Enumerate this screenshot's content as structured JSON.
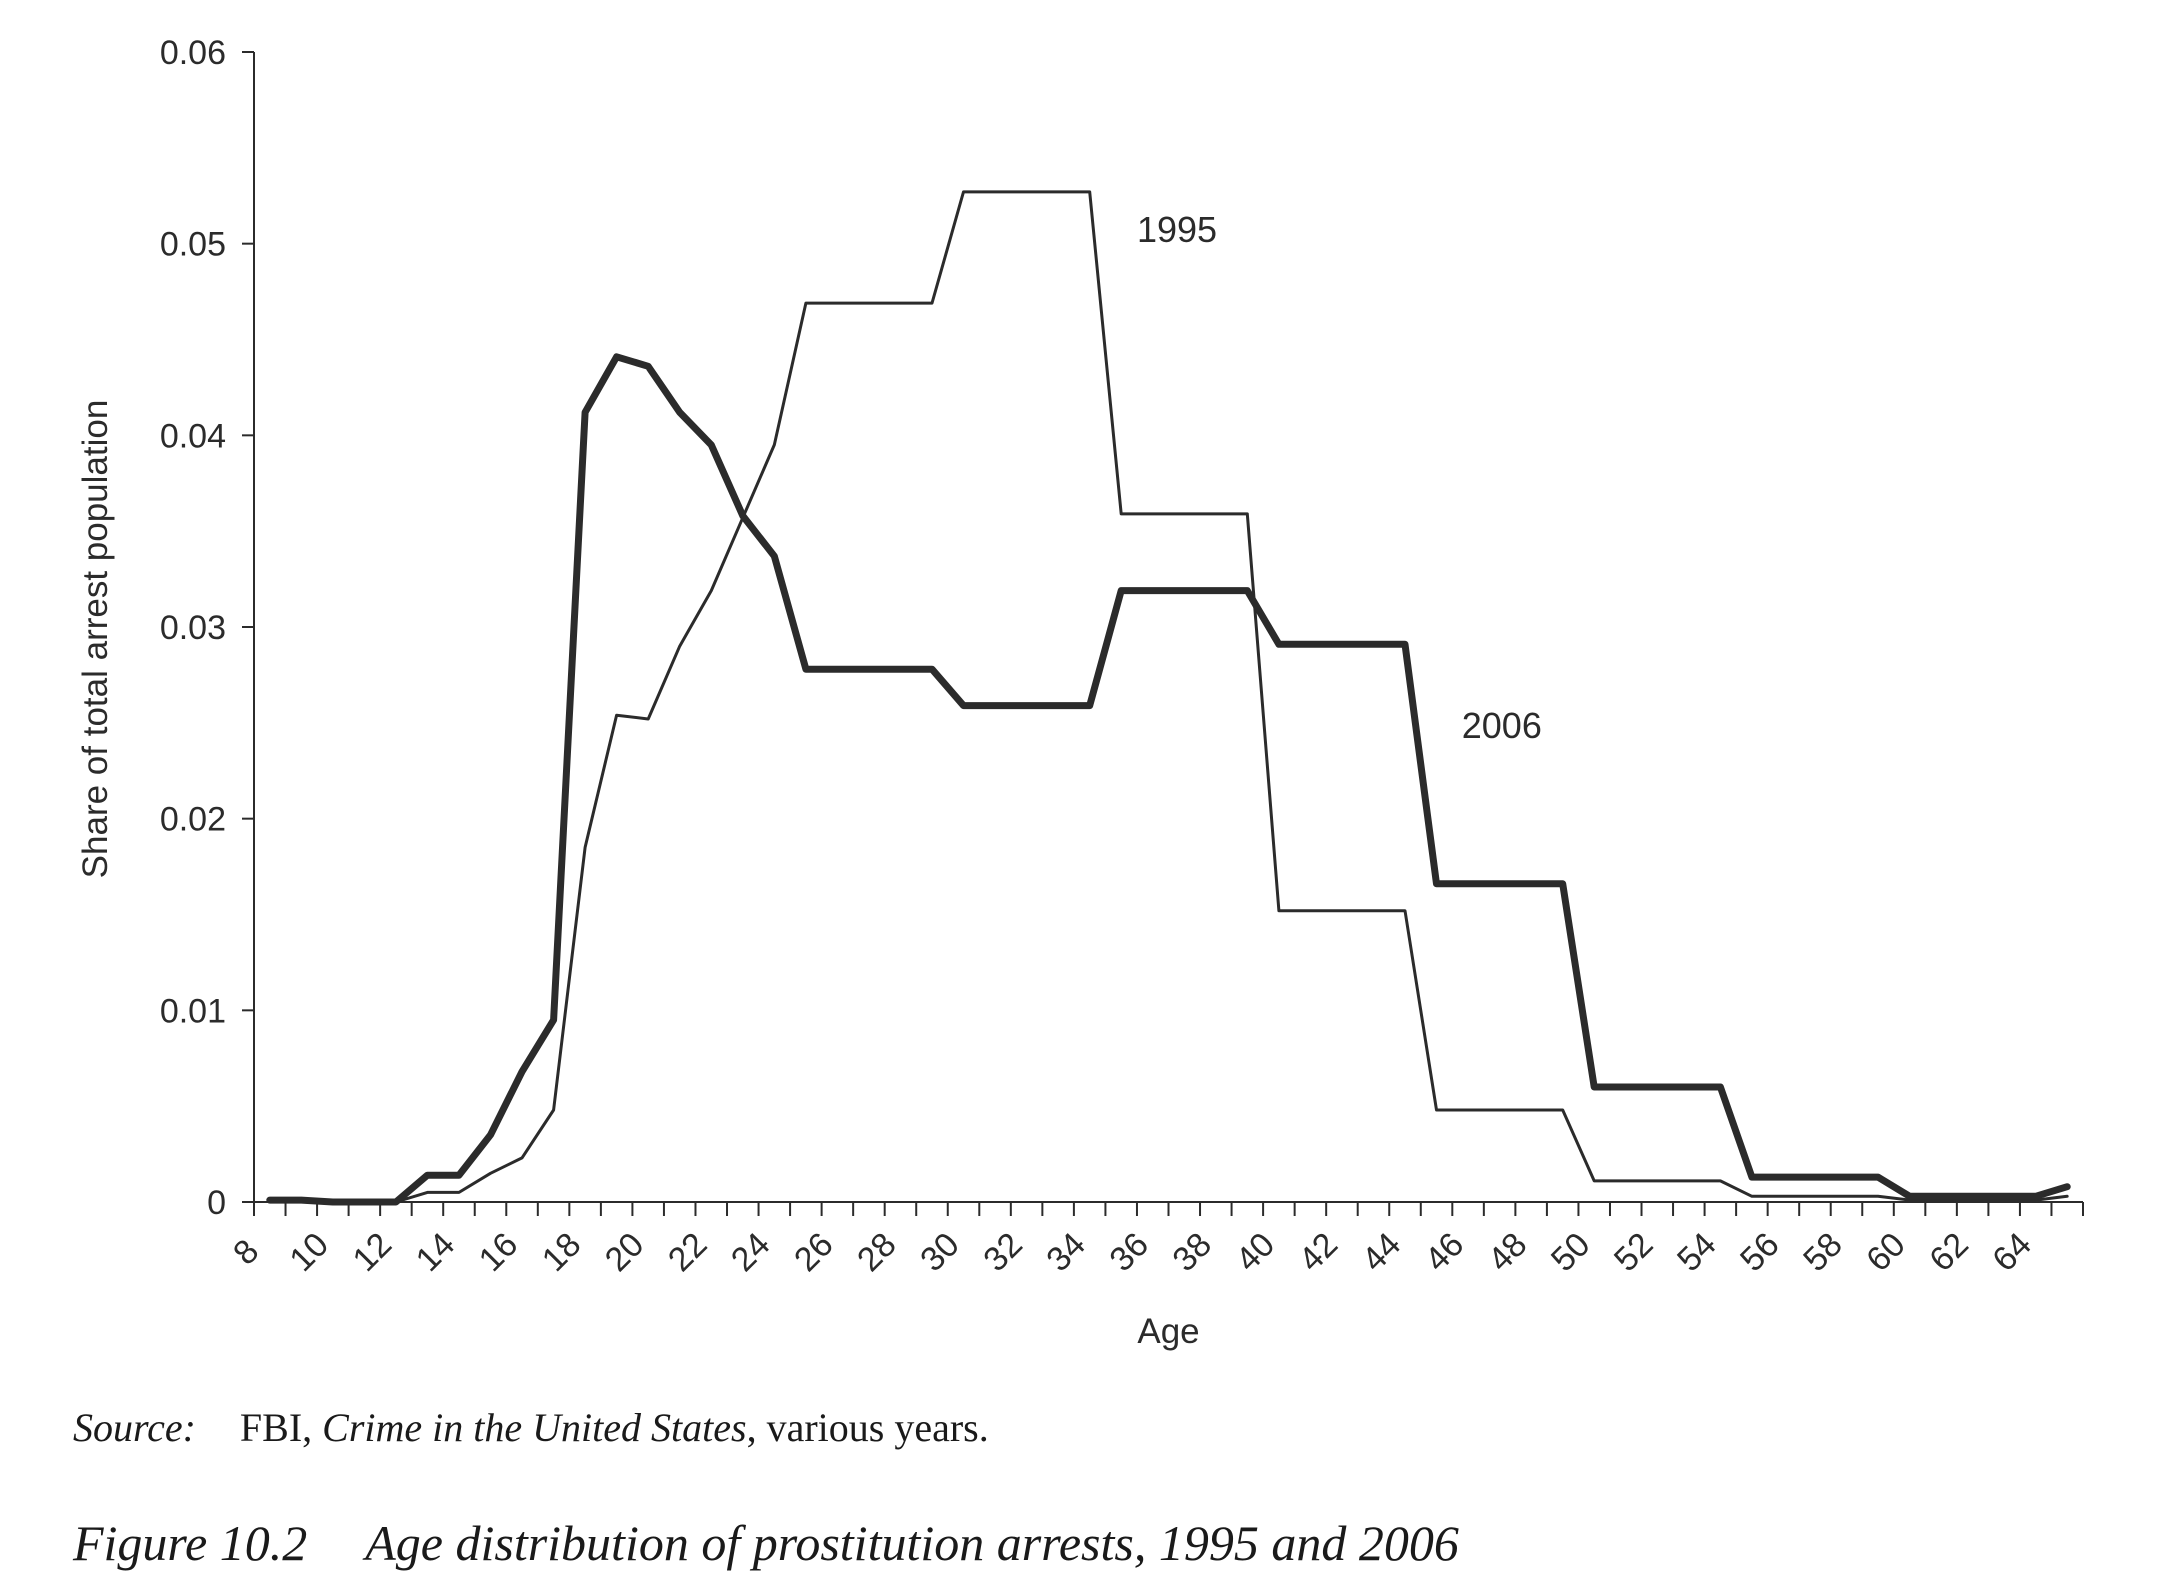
{
  "chart_data": {
    "type": "line",
    "title": "",
    "xlabel": "Age",
    "ylabel": "Share of total arrest population",
    "xlim": [
      8,
      66
    ],
    "ylim": [
      0,
      0.06
    ],
    "xticks": [
      8,
      10,
      12,
      14,
      16,
      18,
      20,
      22,
      24,
      26,
      28,
      30,
      32,
      34,
      36,
      38,
      40,
      42,
      44,
      46,
      48,
      50,
      52,
      54,
      56,
      58,
      60,
      62,
      64
    ],
    "yticks": [
      0,
      0.01,
      0.02,
      0.03,
      0.04,
      0.05,
      0.06
    ],
    "ytick_labels": [
      "0",
      "0.01",
      "0.02",
      "0.03",
      "0.04",
      "0.05",
      "0.06"
    ],
    "grid": false,
    "legend": "none",
    "series": [
      {
        "name": "1995",
        "style": "thin",
        "color": "#2b2b2b",
        "x": [
          8.5,
          9.5,
          10.5,
          11.5,
          12.5,
          13.5,
          14.5,
          15.5,
          16.5,
          17.5,
          18.5,
          19.5,
          20.5,
          21.5,
          22.5,
          23.5,
          24.5,
          25.5,
          29.5,
          30.5,
          34.5,
          35.5,
          39.5,
          40.5,
          44.5,
          45.5,
          49.5,
          50.5,
          54.5,
          55.5,
          59.5,
          60.5,
          64.5,
          65.5
        ],
        "values": [
          0.0001,
          0.0001,
          0.0,
          0.0,
          0.0,
          0.0005,
          0.0005,
          0.0015,
          0.0023,
          0.0048,
          0.0185,
          0.0254,
          0.0252,
          0.029,
          0.0319,
          0.0357,
          0.0395,
          0.0469,
          0.0469,
          0.0527,
          0.0527,
          0.0359,
          0.0359,
          0.0152,
          0.0152,
          0.0048,
          0.0048,
          0.0011,
          0.0011,
          0.0003,
          0.0003,
          0.0001,
          0.0001,
          0.0003
        ]
      },
      {
        "name": "2006",
        "style": "thick",
        "color": "#2b2b2b",
        "x": [
          8.5,
          9.5,
          10.5,
          11.5,
          12.5,
          13.5,
          14.5,
          15.5,
          16.5,
          17.5,
          18.5,
          19.5,
          20.5,
          21.5,
          22.5,
          23.5,
          24.5,
          25.5,
          29.5,
          30.5,
          34.5,
          35.5,
          39.5,
          40.5,
          44.5,
          45.5,
          49.5,
          50.5,
          54.5,
          55.5,
          59.5,
          60.5,
          64.5,
          65.5
        ],
        "values": [
          0.0001,
          0.0001,
          0.0,
          0.0,
          0.0,
          0.0014,
          0.0014,
          0.0035,
          0.0068,
          0.0095,
          0.0412,
          0.0441,
          0.0436,
          0.0412,
          0.0395,
          0.0358,
          0.0337,
          0.0278,
          0.0278,
          0.0259,
          0.0259,
          0.0319,
          0.0319,
          0.0291,
          0.0291,
          0.0166,
          0.0166,
          0.006,
          0.006,
          0.0013,
          0.0013,
          0.0003,
          0.0003,
          0.0008
        ]
      }
    ],
    "annotations": [
      {
        "text": "1995",
        "x": 36,
        "y": 0.0501
      },
      {
        "text": "2006",
        "x": 46.3,
        "y": 0.0242
      }
    ]
  },
  "caption": {
    "source_label": "Source:",
    "source_prefix": "FBI, ",
    "source_title": "Crime in the United States",
    "source_suffix": ", various years.",
    "figure_number": "Figure 10.2",
    "figure_title": "Age distribution of prostitution arrests, 1995 and 2006"
  }
}
